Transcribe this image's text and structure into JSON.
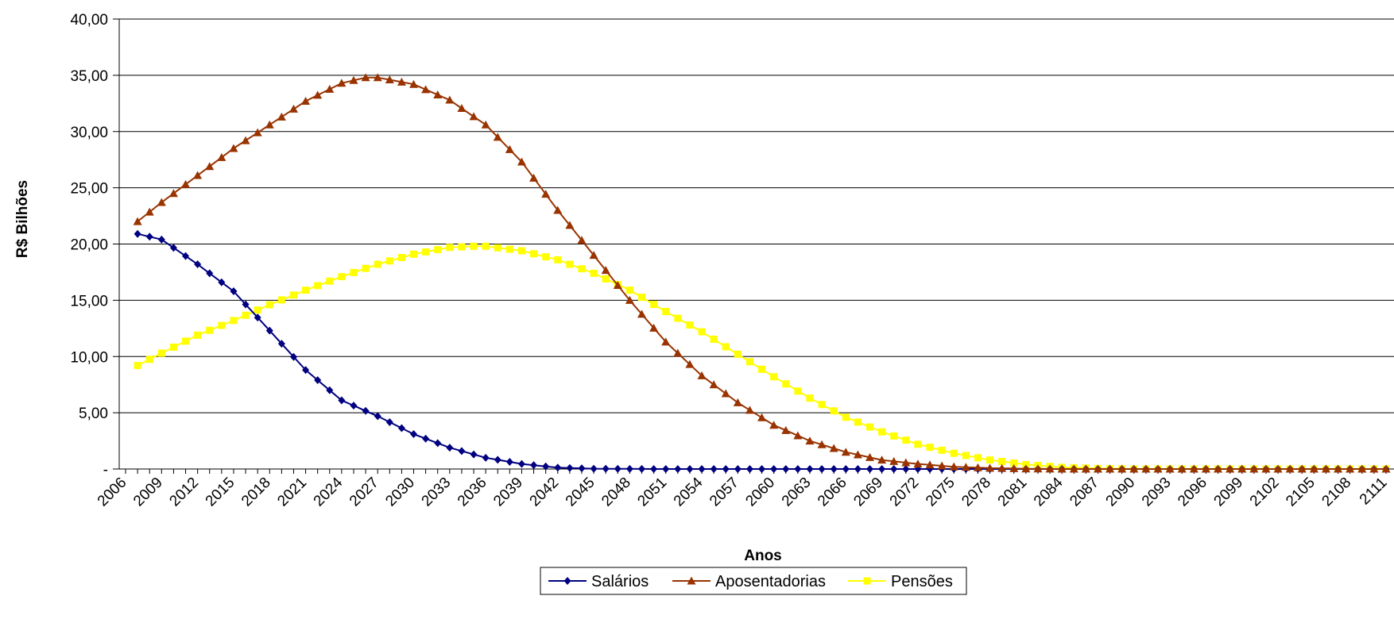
{
  "chart_data": {
    "type": "line",
    "title": "",
    "xlabel": "Anos",
    "ylabel": "R$ Bilhões",
    "ylim": [
      0,
      40
    ],
    "xlim": [
      2006,
      2111
    ],
    "grid": "horizontal",
    "legend_position": "bottom",
    "y_ticks": [
      "-",
      "5,00",
      "10,00",
      "15,00",
      "20,00",
      "25,00",
      "30,00",
      "35,00",
      "40,00"
    ],
    "x_tick_labels": [
      "2006",
      "2009",
      "2012",
      "2015",
      "2018",
      "2021",
      "2024",
      "2027",
      "2030",
      "2033",
      "2036",
      "2039",
      "2042",
      "2045",
      "2048",
      "2051",
      "2054",
      "2057",
      "2060",
      "2063",
      "2066",
      "2069",
      "2072",
      "2075",
      "2078",
      "2081",
      "2084",
      "2087",
      "2090",
      "2093",
      "2096",
      "2099",
      "2102",
      "2105",
      "2108",
      "2111"
    ],
    "series": [
      {
        "name": "Salários",
        "color": "#000080",
        "marker": "diamond",
        "x": [
          2007,
          2009,
          2012,
          2015,
          2018,
          2021,
          2024,
          2027,
          2030,
          2033,
          2036,
          2039,
          2042,
          2045,
          2050,
          2060,
          2070,
          2080,
          2090,
          2111
        ],
        "values": [
          20.9,
          20.4,
          18.2,
          15.8,
          12.3,
          8.8,
          6.1,
          4.7,
          3.1,
          1.9,
          1.0,
          0.45,
          0.12,
          0.03,
          0,
          0,
          0,
          0,
          0,
          0
        ]
      },
      {
        "name": "Aposentadorias",
        "color": "#993300",
        "marker": "triangle",
        "x": [
          2007,
          2009,
          2012,
          2015,
          2018,
          2021,
          2024,
          2026,
          2027,
          2030,
          2033,
          2036,
          2039,
          2042,
          2045,
          2048,
          2051,
          2054,
          2057,
          2060,
          2063,
          2066,
          2069,
          2072,
          2075,
          2078,
          2081,
          2084,
          2090,
          2100,
          2111
        ],
        "values": [
          22.0,
          23.7,
          26.1,
          28.5,
          30.6,
          32.7,
          34.3,
          34.8,
          34.8,
          34.2,
          32.8,
          30.6,
          27.3,
          23.0,
          19.0,
          15.0,
          11.3,
          8.3,
          5.9,
          3.9,
          2.5,
          1.5,
          0.8,
          0.45,
          0.2,
          0.08,
          0.02,
          0,
          0,
          0,
          0
        ]
      },
      {
        "name": "Pensões",
        "color": "#ffff00",
        "marker": "square",
        "x": [
          2007,
          2009,
          2012,
          2015,
          2018,
          2021,
          2024,
          2027,
          2030,
          2033,
          2035,
          2036,
          2039,
          2042,
          2045,
          2048,
          2051,
          2054,
          2057,
          2060,
          2063,
          2066,
          2069,
          2072,
          2075,
          2078,
          2081,
          2084,
          2087,
          2090,
          2100,
          2111
        ],
        "values": [
          9.2,
          10.3,
          11.9,
          13.2,
          14.6,
          15.9,
          17.1,
          18.2,
          19.1,
          19.7,
          19.8,
          19.8,
          19.4,
          18.6,
          17.4,
          15.9,
          14.0,
          12.2,
          10.2,
          8.2,
          6.3,
          4.6,
          3.3,
          2.2,
          1.4,
          0.8,
          0.4,
          0.15,
          0.05,
          0,
          0,
          0
        ]
      }
    ]
  }
}
